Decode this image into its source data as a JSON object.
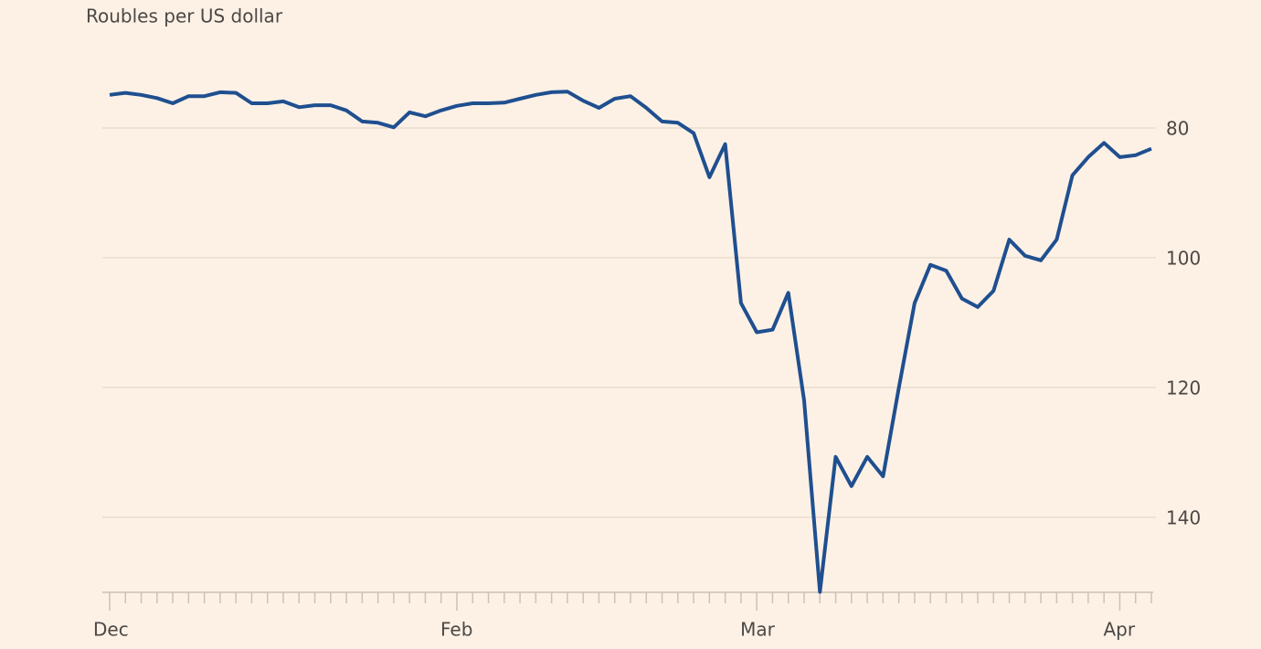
{
  "chart_data": {
    "type": "line",
    "title": "Roubles per US dollar",
    "categories": [
      "Dec",
      null,
      null,
      null,
      null,
      null,
      null,
      null,
      null,
      null,
      null,
      null,
      null,
      null,
      null,
      null,
      null,
      null,
      null,
      null,
      null,
      null,
      "Feb",
      null,
      null,
      null,
      null,
      null,
      null,
      null,
      null,
      null,
      null,
      null,
      null,
      null,
      null,
      null,
      null,
      null,
      null,
      "Mar",
      null,
      null,
      null,
      null,
      null,
      null,
      null,
      null,
      null,
      null,
      null,
      null,
      null,
      null,
      null,
      null,
      null,
      null,
      null,
      null,
      null,
      null,
      "Apr",
      null,
      null
    ],
    "values": [
      74.9,
      74.6,
      74.9,
      75.4,
      76.2,
      75.1,
      75.1,
      74.5,
      74.6,
      76.2,
      76.2,
      75.9,
      76.8,
      76.5,
      76.5,
      77.3,
      79.0,
      79.2,
      79.9,
      77.6,
      78.2,
      77.3,
      76.6,
      76.2,
      76.2,
      76.1,
      75.5,
      74.9,
      74.5,
      74.4,
      75.8,
      76.9,
      75.5,
      75.1,
      76.9,
      79.0,
      79.2,
      80.8,
      87.6,
      82.5,
      107.0,
      111.5,
      111.1,
      105.4,
      122.0,
      151.5,
      130.7,
      135.2,
      130.7,
      133.7,
      120.1,
      107.0,
      101.1,
      102.0,
      106.3,
      107.6,
      105.1,
      97.2,
      99.7,
      100.4,
      97.2,
      87.3,
      84.5,
      82.3,
      84.5,
      84.2,
      83.2
    ],
    "color": "#1f4f8f",
    "ylim": [
      70,
      152
    ],
    "yticks": [
      80,
      100,
      120,
      140
    ],
    "invert_y": true,
    "grid": true
  }
}
